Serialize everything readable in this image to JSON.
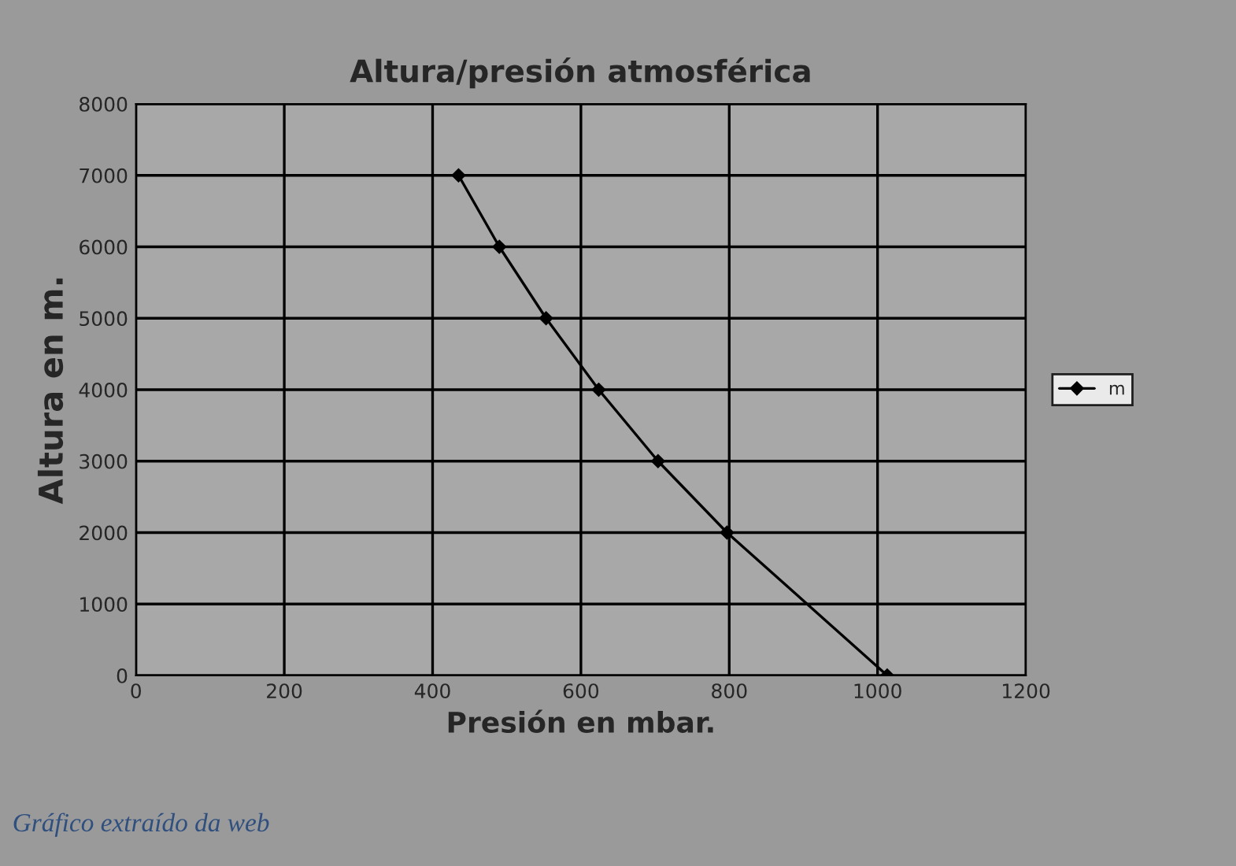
{
  "chart_data": {
    "type": "line",
    "title": "Altura/presión atmosférica",
    "xlabel": "Presión en mbar.",
    "ylabel": "Altura en m.",
    "series": [
      {
        "name": "m",
        "color": "#000000",
        "x": [
          435,
          490,
          553,
          624,
          704,
          797,
          1013
        ],
        "values": [
          7000,
          6000,
          5000,
          4000,
          3000,
          2000,
          0
        ]
      }
    ],
    "xlim": [
      0,
      1200
    ],
    "xticks": [
      0,
      200,
      400,
      600,
      800,
      1000,
      1200
    ],
    "ylim": [
      0,
      8000
    ],
    "yticks": [
      0,
      1000,
      2000,
      3000,
      4000,
      5000,
      6000,
      7000,
      8000
    ],
    "grid": true,
    "legend": "right",
    "marker": "diamond",
    "line_style": "solid",
    "annotations": [
      "Gráfico extraído da web"
    ]
  }
}
